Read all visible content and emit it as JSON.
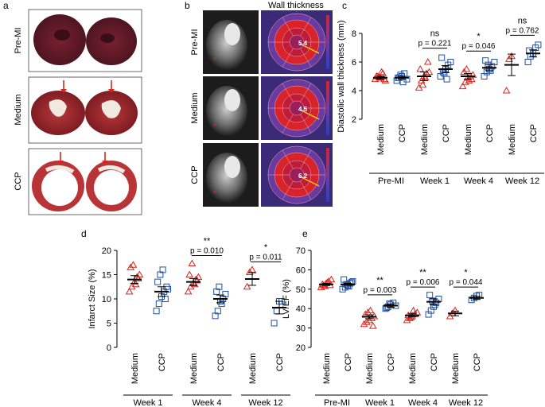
{
  "panels": {
    "a": "a",
    "b": "b",
    "c": "c",
    "d": "d",
    "e": "e"
  },
  "panel_a": {
    "rows": [
      "Pre-MI",
      "Medium",
      "CCP"
    ],
    "colors": {
      "tissue_dark": "#5e1a24",
      "tissue_medium": "#9c2a2c",
      "infarct_pale": "#f2e8e2",
      "arrow": "#d8261c"
    }
  },
  "panel_b": {
    "title": "Wall thickness",
    "rows": [
      "Pre-MI",
      "Medium",
      "CCP"
    ],
    "bullseye_values": [
      "5.4",
      "4.5",
      "6.2"
    ],
    "colors": {
      "mri_bg": "#1c1c1c",
      "polar_red": "#d8232a",
      "polar_purple": "#6a3aa0",
      "polar_blue": "#2444c8"
    }
  },
  "colors": {
    "medium_marker": "#d8261c",
    "ccp_marker": "#1f4fa0",
    "axis": "#000000"
  },
  "chart_data": [
    {
      "id": "c",
      "type": "scatter",
      "ylabel": "Diastolic wall thickness (mm)",
      "ylim": [
        2,
        8
      ],
      "yticks": [
        2,
        4,
        6,
        8
      ],
      "groups": [
        "Pre-MI",
        "Week 1",
        "Week 4",
        "Week 12"
      ],
      "conditions": [
        "Medium",
        "CCP"
      ],
      "series": [
        {
          "name": "Medium",
          "marker": "triangle",
          "means": [
            4.9,
            5.0,
            5.0,
            5.8
          ],
          "sem": [
            0.1,
            0.3,
            0.2,
            0.75
          ],
          "points": [
            [
              4.8,
              5.0,
              4.9,
              5.2,
              4.7,
              5.0,
              4.9,
              5.3,
              4.8
            ],
            [
              4.2,
              4.7,
              5.0,
              5.2,
              5.3,
              5.5,
              4.4,
              4.9,
              6.0
            ],
            [
              4.3,
              4.6,
              4.9,
              5.0,
              5.1,
              5.3,
              5.5,
              4.7,
              4.8
            ],
            [
              4.0,
              6.2,
              6.4
            ]
          ]
        },
        {
          "name": "CCP",
          "marker": "square",
          "means": [
            4.9,
            5.5,
            5.6,
            6.6
          ],
          "sem": [
            0.1,
            0.25,
            0.2,
            0.25
          ],
          "points": [
            [
              4.7,
              4.9,
              5.0,
              5.2,
              4.8,
              4.9,
              5.1,
              4.6
            ],
            [
              5.0,
              5.3,
              5.5,
              5.8,
              6.0,
              6.3,
              5.2,
              4.8
            ],
            [
              5.0,
              5.3,
              5.5,
              5.7,
              6.0,
              6.1,
              5.8,
              5.4
            ],
            [
              6.0,
              6.4,
              6.6,
              7.0,
              7.2,
              6.8
            ]
          ]
        }
      ],
      "annotations": [
        {
          "group": 1,
          "stars": "ns",
          "p": "p = 0.221"
        },
        {
          "group": 2,
          "stars": "*",
          "p": "p = 0.046"
        },
        {
          "group": 3,
          "stars": "ns",
          "p": "p = 0.762"
        }
      ]
    },
    {
      "id": "d",
      "type": "scatter",
      "ylabel": "Infarct Size (%)",
      "ylim": [
        0,
        20
      ],
      "yticks": [
        0,
        5,
        10,
        15,
        20
      ],
      "groups": [
        "Week 1",
        "Week 4",
        "Week 12"
      ],
      "conditions": [
        "Medium",
        "CCP"
      ],
      "series": [
        {
          "name": "Medium",
          "marker": "triangle",
          "means": [
            14.0,
            13.5,
            14.1
          ],
          "sem": [
            0.8,
            0.7,
            1.3
          ],
          "points": [
            [
              11.5,
              12.5,
              13.5,
              14.5,
              15.0,
              16.5,
              17.0,
              13.0,
              14.2
            ],
            [
              11.5,
              12.5,
              13.2,
              14.0,
              14.5,
              15.0,
              17.3,
              13.0,
              13.8
            ],
            [
              12.5,
              15.5,
              16.0
            ]
          ]
        },
        {
          "name": "CCP",
          "marker": "square",
          "means": [
            11.5,
            10.0,
            8.2
          ],
          "sem": [
            1.0,
            0.8,
            1.3
          ],
          "points": [
            [
              7.5,
              9.0,
              10.5,
              11.5,
              12.5,
              13.5,
              15.0,
              16.0,
              10.0,
              12.0
            ],
            [
              6.5,
              7.5,
              9.5,
              10.0,
              11.0,
              11.5,
              12.5,
              9.0
            ],
            [
              5.0,
              7.5,
              9.5,
              9.5
            ]
          ]
        }
      ],
      "annotations": [
        {
          "group": 1,
          "stars": "**",
          "p": "p = 0.010"
        },
        {
          "group": 2,
          "stars": "*",
          "p": "p = 0.011"
        }
      ]
    },
    {
      "id": "e",
      "type": "scatter",
      "ylabel": "LV/EF (%)",
      "ylim": [
        20,
        70
      ],
      "yticks": [
        20,
        30,
        40,
        50,
        60,
        70
      ],
      "groups": [
        "Pre-MI",
        "Week 1",
        "Week 4",
        "Week 12"
      ],
      "conditions": [
        "Medium",
        "CCP"
      ],
      "series": [
        {
          "name": "Medium",
          "marker": "triangle",
          "means": [
            52.5,
            35.8,
            36.5,
            37.5
          ],
          "sem": [
            0.5,
            1.0,
            0.8,
            1.2
          ],
          "points": [
            [
              51,
              52,
              53,
              54,
              55,
              52.5,
              51.5,
              53.5,
              52
            ],
            [
              32,
              33,
              34,
              35,
              36,
              37,
              38,
              39,
              31
            ],
            [
              34,
              35,
              36,
              37,
              38,
              36.5,
              35.5,
              39
            ],
            [
              36,
              37.5,
              39
            ]
          ]
        },
        {
          "name": "CCP",
          "marker": "square",
          "means": [
            52.5,
            41.5,
            43.5,
            45.5
          ],
          "sem": [
            0.5,
            0.8,
            1.5,
            0.8
          ],
          "points": [
            [
              50,
              51,
              52,
              53,
              54,
              55,
              52.5,
              51.5,
              53.5
            ],
            [
              40,
              41,
              42,
              43,
              41.5,
              40.5,
              42.5
            ],
            [
              37,
              39,
              41,
              43,
              45,
              47,
              44,
              42
            ],
            [
              44.5,
              45.5,
              46.5,
              47
            ]
          ]
        }
      ],
      "annotations": [
        {
          "group": 1,
          "stars": "**",
          "p": "p = 0.003"
        },
        {
          "group": 2,
          "stars": "**",
          "p": "p = 0.006"
        },
        {
          "group": 3,
          "stars": "*",
          "p": "p = 0.044"
        }
      ]
    }
  ]
}
